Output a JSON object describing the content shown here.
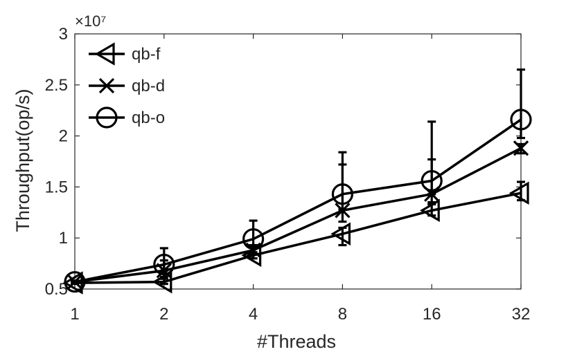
{
  "chart_data": {
    "type": "line",
    "title": "",
    "xlabel": "#Threads",
    "ylabel": "Throughput(op/s)",
    "y_exponent_label": "×10⁷",
    "x_tick_labels": [
      "1",
      "2",
      "4",
      "8",
      "16",
      "32"
    ],
    "x": [
      1,
      2,
      4,
      8,
      16,
      32
    ],
    "x_scale": "log2",
    "xlim": [
      1,
      32
    ],
    "y_tick_labels": [
      "0.5",
      "1",
      "1.5",
      "2",
      "2.5",
      "3"
    ],
    "y_ticks": [
      0.5,
      1.0,
      1.5,
      2.0,
      2.5,
      3.0
    ],
    "ylim": [
      0.5,
      3.0
    ],
    "y_units": "×10^7 op/s",
    "grid": false,
    "legend_position": "top-left",
    "series": [
      {
        "name": "qb-f",
        "marker": "triangle-left",
        "color": "#000000",
        "values": [
          0.56,
          0.57,
          0.83,
          1.04,
          1.27,
          1.44
        ],
        "error_upper": [
          0.57,
          0.6,
          0.86,
          1.1,
          1.33,
          1.55
        ],
        "error_lower": [
          0.55,
          0.55,
          0.8,
          0.93,
          1.22,
          1.37
        ]
      },
      {
        "name": "qb-d",
        "marker": "x",
        "color": "#000000",
        "values": [
          0.57,
          0.68,
          0.88,
          1.27,
          1.43,
          1.88
        ],
        "error_upper": [
          0.58,
          0.78,
          0.93,
          1.72,
          1.77,
          1.92
        ],
        "error_lower": [
          0.56,
          0.62,
          0.84,
          1.16,
          1.35,
          1.83
        ]
      },
      {
        "name": "qb-o",
        "marker": "circle",
        "color": "#000000",
        "values": [
          0.57,
          0.74,
          0.99,
          1.43,
          1.56,
          2.16
        ],
        "error_upper": [
          0.58,
          0.9,
          1.17,
          1.84,
          2.14,
          2.65
        ],
        "error_lower": [
          0.56,
          0.68,
          0.91,
          1.28,
          1.43,
          1.98
        ]
      }
    ]
  }
}
